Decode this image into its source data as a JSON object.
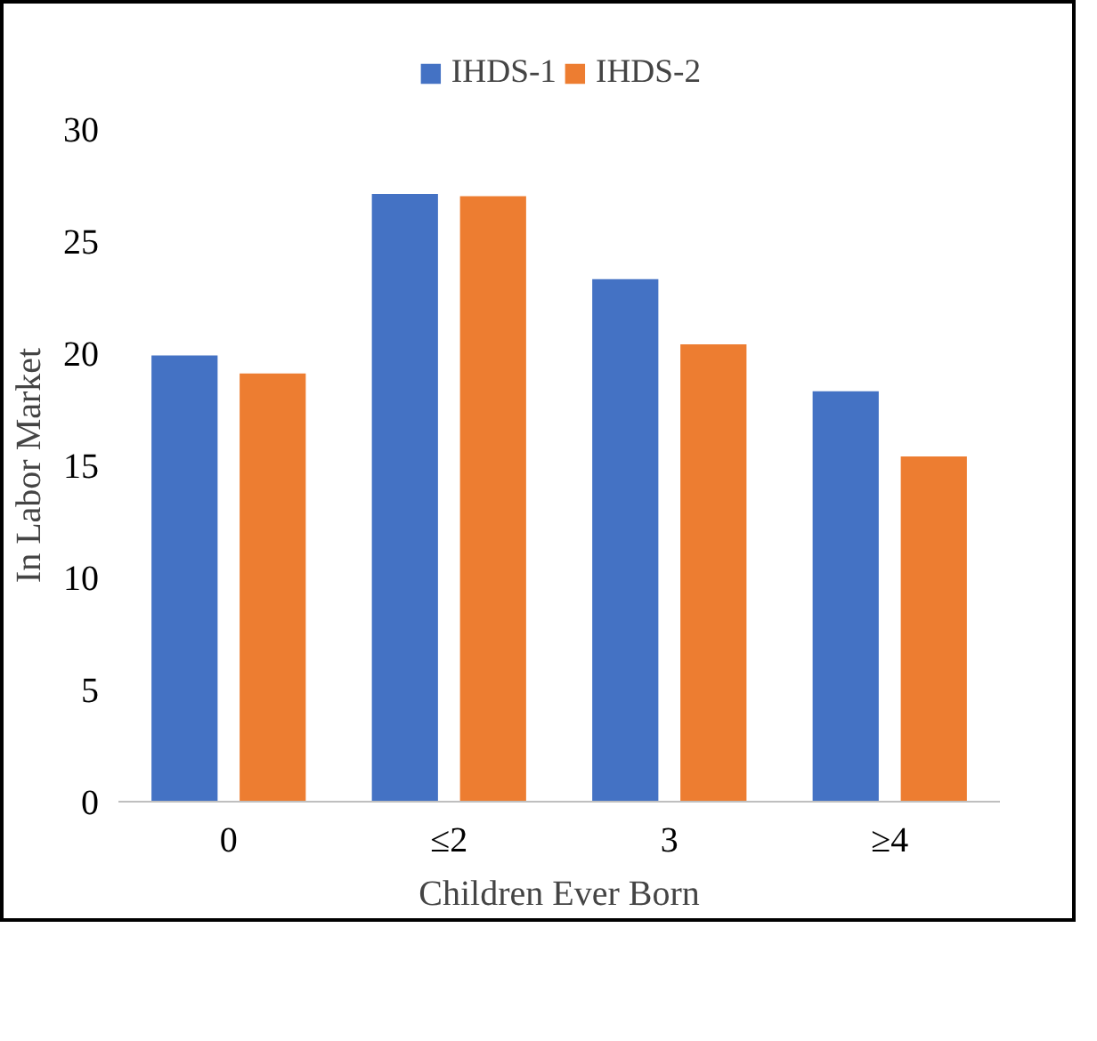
{
  "chart_data": {
    "type": "bar",
    "xlabel": "Children Ever Born",
    "ylabel": "In Labor Market",
    "categories": [
      "0",
      "≤2",
      "3",
      "≥4"
    ],
    "series": [
      {
        "name": "IHDS-1",
        "color": "#4472c4",
        "values": [
          19.9,
          27.1,
          23.3,
          18.3
        ]
      },
      {
        "name": "IHDS-2",
        "color": "#ed7d31",
        "values": [
          19.1,
          27.0,
          20.4,
          15.4
        ]
      }
    ],
    "ylim": [
      0,
      30
    ],
    "yticks": [
      0,
      5,
      10,
      15,
      20,
      25,
      30
    ],
    "grid": false,
    "legend": "top"
  }
}
